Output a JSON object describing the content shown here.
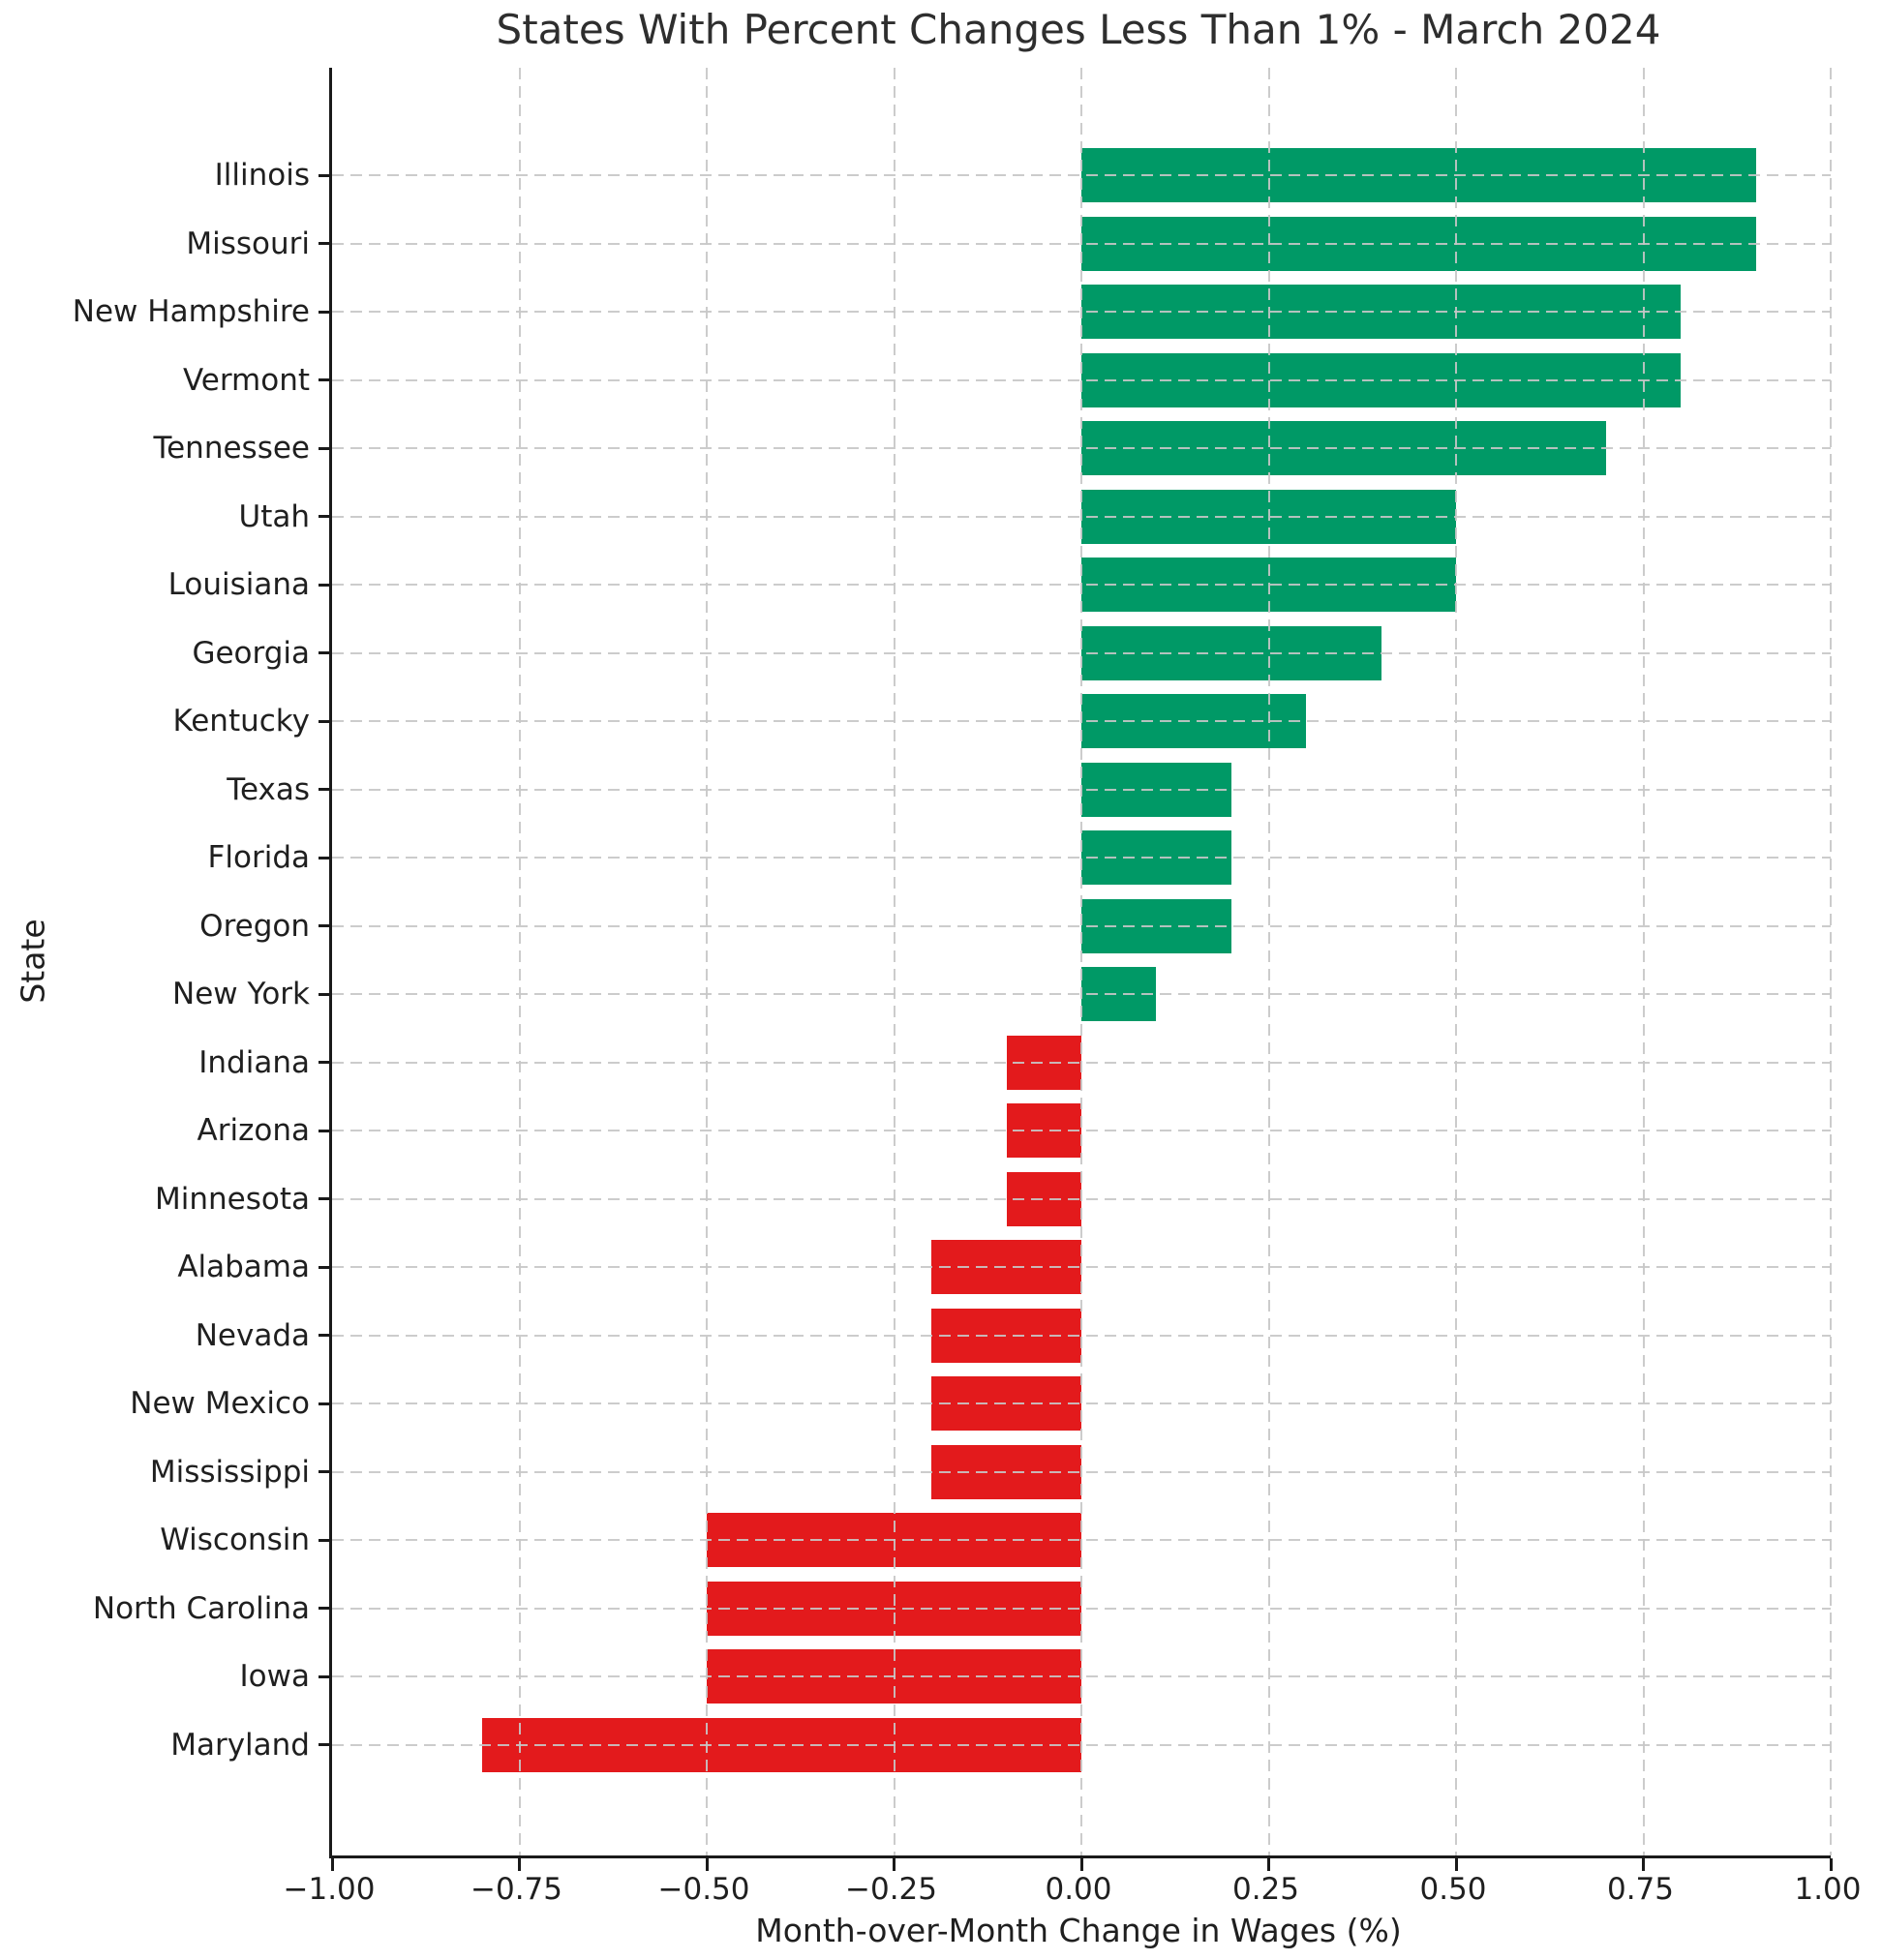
{
  "chart_data": {
    "type": "bar",
    "orientation": "horizontal",
    "title": "States With Percent Changes Less Than 1% - March 2024",
    "xlabel": "Month-over-Month Change in Wages (%)",
    "ylabel": "State",
    "categories": [
      "Illinois",
      "Missouri",
      "New Hampshire",
      "Vermont",
      "Tennessee",
      "Utah",
      "Louisiana",
      "Georgia",
      "Kentucky",
      "Texas",
      "Florida",
      "Oregon",
      "New York",
      "Indiana",
      "Arizona",
      "Minnesota",
      "Alabama",
      "Nevada",
      "New Mexico",
      "Mississippi",
      "Wisconsin",
      "North Carolina",
      "Iowa",
      "Maryland"
    ],
    "values": [
      0.9,
      0.9,
      0.8,
      0.8,
      0.7,
      0.5,
      0.5,
      0.4,
      0.3,
      0.2,
      0.2,
      0.2,
      0.1,
      -0.1,
      -0.1,
      -0.1,
      -0.2,
      -0.2,
      -0.2,
      -0.2,
      -0.5,
      -0.5,
      -0.5,
      -0.8
    ],
    "xlim": [
      -1.0,
      1.0
    ],
    "xticks": [
      -1.0,
      -0.75,
      -0.5,
      -0.25,
      0.0,
      0.25,
      0.5,
      0.75,
      1.0
    ],
    "xtick_labels": [
      "−1.00",
      "−0.75",
      "−0.50",
      "−0.25",
      "0.00",
      "0.25",
      "0.50",
      "0.75",
      "1.00"
    ],
    "grid": true,
    "grid_style": "dashed",
    "grid_position": "above-bars",
    "legend": "none",
    "colors": {
      "positive": "#009966",
      "negative": "#E31A1C",
      "grid": "#C7C7C7",
      "spine": "#1A1A1A",
      "text": "#1F1F1F"
    }
  }
}
